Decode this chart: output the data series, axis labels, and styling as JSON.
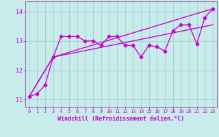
{
  "title": "",
  "xlabel": "Windchill (Refroidissement éolien,°C)",
  "ylabel": "",
  "bg_color": "#c8ecec",
  "grid_color": "#aad4d4",
  "line_color": "#cc00cc",
  "spine_color": "#9966aa",
  "ylim": [
    10.75,
    14.35
  ],
  "xlim": [
    -0.5,
    23.5
  ],
  "yticks": [
    11,
    12,
    13,
    14
  ],
  "xticks": [
    0,
    1,
    2,
    3,
    4,
    5,
    6,
    7,
    8,
    9,
    10,
    11,
    12,
    13,
    14,
    15,
    16,
    17,
    18,
    19,
    20,
    21,
    22,
    23
  ],
  "series1_x": [
    0,
    1,
    2,
    3,
    4,
    5,
    6,
    7,
    8,
    9,
    10,
    11,
    12,
    13,
    14,
    15,
    16,
    17,
    18,
    19,
    20,
    21,
    22,
    23
  ],
  "series1_y": [
    11.1,
    11.2,
    11.5,
    12.45,
    13.15,
    13.15,
    13.15,
    13.0,
    13.0,
    12.85,
    13.15,
    13.15,
    12.85,
    12.85,
    12.45,
    12.85,
    12.8,
    12.65,
    13.35,
    13.55,
    13.55,
    12.9,
    13.8,
    14.1
  ],
  "series2_x": [
    0,
    3,
    23
  ],
  "series2_y": [
    11.1,
    12.45,
    13.55
  ],
  "series3_x": [
    0,
    3,
    23
  ],
  "series3_y": [
    11.1,
    12.45,
    14.1
  ],
  "marker": "D",
  "markersize": 2.5,
  "linewidth": 1.0
}
